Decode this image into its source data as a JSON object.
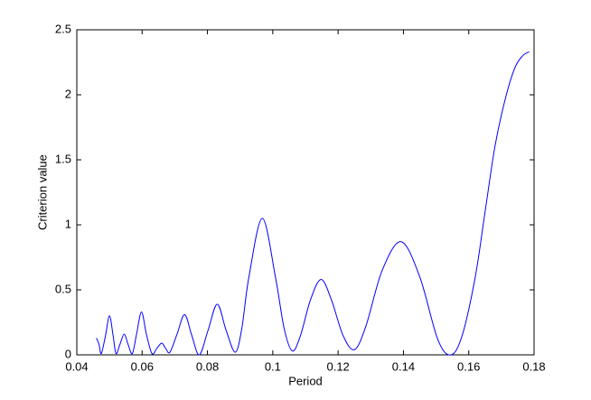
{
  "chart_data": {
    "type": "line",
    "xlabel": "Period",
    "ylabel": "Criterion value",
    "xlim": [
      0.04,
      0.18
    ],
    "xticks": [
      0.04,
      0.06,
      0.08,
      0.1,
      0.12,
      0.14,
      0.16,
      0.18
    ],
    "ylim": [
      0,
      2.5
    ],
    "yticks": [
      0,
      0.5,
      1,
      1.5,
      2,
      2.5
    ],
    "grid": false,
    "series": [
      {
        "color": "#0000ff",
        "x": [
          0.046,
          0.0468,
          0.0475,
          0.0488,
          0.05,
          0.0511,
          0.052,
          0.0532,
          0.0545,
          0.0557,
          0.057,
          0.0583,
          0.0598,
          0.0613,
          0.063,
          0.0645,
          0.066,
          0.0672,
          0.0685,
          0.0707,
          0.073,
          0.0752,
          0.0775,
          0.0802,
          0.083,
          0.0857,
          0.0885,
          0.0905,
          0.0927,
          0.0968,
          0.1008,
          0.1035,
          0.106,
          0.1085,
          0.1115,
          0.1148,
          0.118,
          0.1215,
          0.125,
          0.1285,
          0.1335,
          0.1393,
          0.145,
          0.1505,
          0.1545,
          0.158,
          0.162,
          0.165,
          0.168,
          0.171,
          0.174,
          0.1765,
          0.1785
        ],
        "values": [
          0.13,
          0.08,
          0.01,
          0.15,
          0.3,
          0.15,
          0.01,
          0.08,
          0.16,
          0.08,
          0.01,
          0.16,
          0.33,
          0.16,
          0.01,
          0.05,
          0.09,
          0.05,
          0.02,
          0.16,
          0.31,
          0.15,
          0.0,
          0.19,
          0.39,
          0.19,
          0.02,
          0.2,
          0.6,
          1.05,
          0.6,
          0.2,
          0.03,
          0.15,
          0.42,
          0.58,
          0.42,
          0.15,
          0.04,
          0.22,
          0.65,
          0.87,
          0.6,
          0.12,
          0.0,
          0.15,
          0.6,
          1.1,
          1.6,
          1.95,
          2.2,
          2.3,
          2.33
        ]
      }
    ]
  }
}
